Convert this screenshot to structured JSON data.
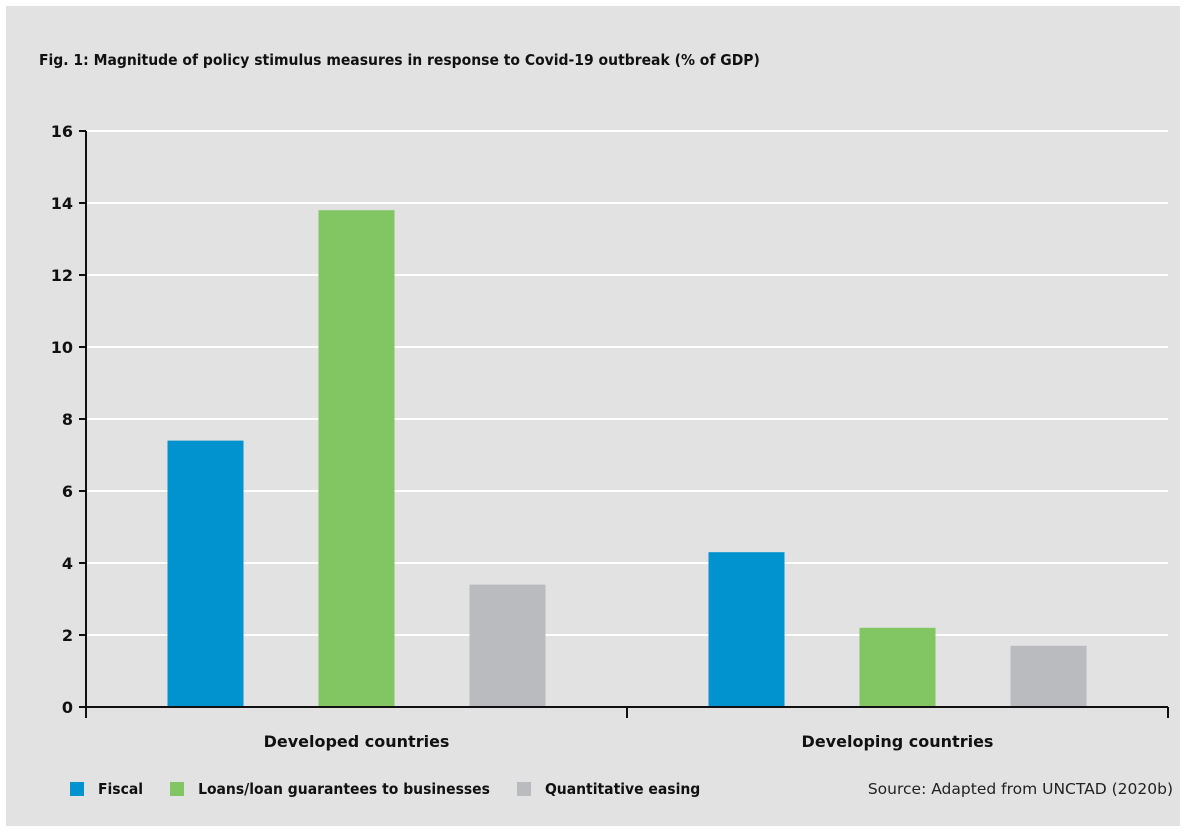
{
  "title": "Fig. 1: Magnitude of policy stimulus measures in response to Covid-19 outbreak (% of GDP)",
  "source": "Source: Adapted from UNCTAD (2020b)",
  "colors": {
    "background": "#e2e2e2",
    "grid": "#ffffff",
    "axis": "#111111",
    "Fiscal": "#0093d0",
    "Loans": "#82c664",
    "QE": "#babbbe"
  },
  "chart_data": {
    "type": "bar",
    "title": "Fig. 1: Magnitude of policy stimulus measures in response to Covid-19 outbreak (% of GDP)",
    "categories": [
      "Developed countries",
      "Developing countries"
    ],
    "series": [
      {
        "name": "Fiscal",
        "values": [
          7.4,
          4.3
        ],
        "color": "#0093d0"
      },
      {
        "name": "Loans/loan guarantees to businesses",
        "values": [
          13.8,
          2.2
        ],
        "color": "#82c664"
      },
      {
        "name": "Quantitative easing",
        "values": [
          3.4,
          1.7
        ],
        "color": "#babbbe"
      }
    ],
    "ylim": [
      0,
      16
    ],
    "yticks": [
      0,
      2,
      4,
      6,
      8,
      10,
      12,
      14,
      16
    ],
    "grid": true,
    "legend_position": "bottom-left"
  }
}
